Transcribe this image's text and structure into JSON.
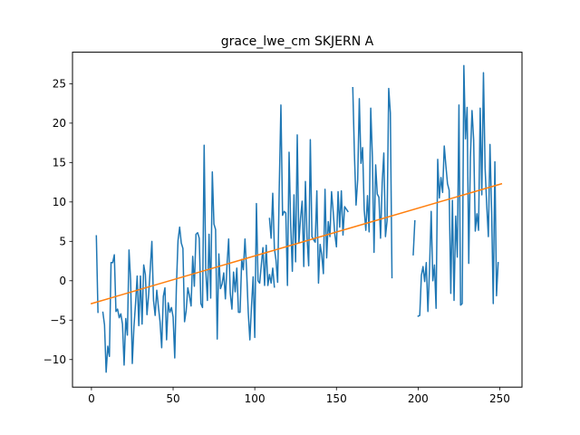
{
  "chart_data": {
    "type": "line",
    "title": "grace_lwe_cm SKJERN A",
    "xlabel": "",
    "ylabel": "",
    "xlim": [
      -11.6,
      263.6
    ],
    "ylim": [
      -13.5,
      29.0
    ],
    "grid": false,
    "x_ticks": [
      0,
      50,
      100,
      150,
      200,
      250
    ],
    "x_tick_labels": [
      "0",
      "50",
      "100",
      "150",
      "200",
      "250"
    ],
    "y_ticks": [
      -10,
      -5,
      0,
      5,
      10,
      15,
      20,
      25
    ],
    "y_tick_labels": [
      "−10",
      "−5",
      "0",
      "5",
      "10",
      "15",
      "20",
      "25"
    ],
    "colors": {
      "series": "#1f77b4",
      "trend": "#ff7f0e"
    },
    "series": [
      {
        "color": "#1f77b4",
        "segments": [
          [
            [
              3,
              5.7
            ],
            [
              4,
              -4.0
            ]
          ],
          [
            [
              7,
              -4.0
            ],
            [
              8,
              -5.6
            ],
            [
              9,
              -11.6
            ],
            [
              10,
              -8.3
            ],
            [
              11,
              -9.6
            ],
            [
              12,
              2.3
            ],
            [
              13,
              2.3
            ],
            [
              14,
              3.3
            ],
            [
              15,
              -3.9
            ],
            [
              16,
              -3.6
            ],
            [
              17,
              -4.7
            ],
            [
              18,
              -4.2
            ],
            [
              19,
              -5.5
            ],
            [
              20,
              -10.7
            ],
            [
              21,
              -4.8
            ],
            [
              22,
              -6.9
            ],
            [
              23,
              3.9
            ],
            [
              24,
              0.0
            ],
            [
              25,
              -10.5
            ],
            [
              26,
              -5.9
            ],
            [
              27,
              -2.9
            ],
            [
              28,
              0.6
            ],
            [
              29,
              -5.7
            ],
            [
              30,
              0.6
            ],
            [
              31,
              -5.5
            ],
            [
              32,
              2.0
            ],
            [
              33,
              0.8
            ],
            [
              34,
              -4.3
            ],
            [
              35,
              -1.8
            ],
            [
              36,
              1.5
            ],
            [
              37,
              5.0
            ],
            [
              38,
              -2.5
            ],
            [
              39,
              -4.4
            ],
            [
              40,
              -1.2
            ],
            [
              41,
              -3.3
            ],
            [
              42,
              -5.2
            ],
            [
              43,
              -8.5
            ],
            [
              44,
              -2.0
            ],
            [
              45,
              -0.9
            ],
            [
              46,
              -7.5
            ],
            [
              47,
              -2.8
            ],
            [
              48,
              -4.0
            ],
            [
              49,
              -3.4
            ],
            [
              50,
              -4.6
            ],
            [
              51,
              -9.8
            ],
            [
              52,
              -0.8
            ],
            [
              53,
              5.1
            ],
            [
              54,
              6.8
            ],
            [
              55,
              4.8
            ],
            [
              56,
              4.1
            ],
            [
              57,
              -5.2
            ],
            [
              58,
              -3.8
            ],
            [
              59,
              -0.9
            ],
            [
              60,
              -1.9
            ],
            [
              61,
              -3.2
            ],
            [
              62,
              3.1
            ],
            [
              63,
              -0.7
            ],
            [
              64,
              5.9
            ],
            [
              65,
              6.1
            ],
            [
              66,
              5.4
            ],
            [
              67,
              -2.9
            ],
            [
              68,
              -3.4
            ],
            [
              69,
              17.2
            ],
            [
              70,
              1.2
            ],
            [
              71,
              -2.5
            ],
            [
              72,
              5.9
            ],
            [
              73,
              -2.2
            ],
            [
              74,
              13.8
            ],
            [
              75,
              7.2
            ],
            [
              76,
              6.5
            ],
            [
              77,
              -7.4
            ],
            [
              78,
              3.4
            ],
            [
              79,
              -1.0
            ],
            [
              80,
              -0.4
            ],
            [
              81,
              1.0
            ],
            [
              82,
              -2.3
            ],
            [
              83,
              2.0
            ],
            [
              84,
              5.3
            ],
            [
              85,
              -1.6
            ],
            [
              86,
              -3.6
            ],
            [
              87,
              1.1
            ],
            [
              88,
              -1.4
            ],
            [
              89,
              1.6
            ],
            [
              90,
              -4.0
            ],
            [
              91,
              -4.0
            ],
            [
              92,
              2.7
            ],
            [
              93,
              1.4
            ],
            [
              94,
              5.3
            ],
            [
              95,
              1.3
            ],
            [
              96,
              -4.0
            ],
            [
              97,
              -7.5
            ],
            [
              98,
              -3.2
            ],
            [
              99,
              0.5
            ],
            [
              100,
              -7.2
            ],
            [
              101,
              9.8
            ],
            [
              102,
              0.0
            ],
            [
              103,
              -0.3
            ],
            [
              104,
              2.0
            ],
            [
              105,
              4.2
            ],
            [
              106,
              -0.6
            ],
            [
              107,
              4.5
            ],
            [
              108,
              -0.6
            ],
            [
              109,
              0.8
            ],
            [
              110,
              -0.3
            ],
            [
              111,
              1.6
            ],
            [
              112,
              -0.8
            ]
          ],
          [
            [
              109,
              7.9
            ],
            [
              110,
              5.4
            ],
            [
              111,
              11.1
            ],
            [
              112,
              4.1
            ],
            [
              113,
              2.6
            ],
            [
              114,
              -0.2
            ],
            [
              115,
              12.0
            ],
            [
              116,
              22.3
            ],
            [
              117,
              8.3
            ],
            [
              118,
              8.8
            ],
            [
              119,
              8.6
            ],
            [
              120,
              -0.6
            ],
            [
              121,
              16.3
            ],
            [
              122,
              7.0
            ],
            [
              123,
              1.2
            ],
            [
              124,
              10.9
            ],
            [
              125,
              2.4
            ],
            [
              126,
              18.5
            ],
            [
              127,
              4.8
            ],
            [
              128,
              7.9
            ],
            [
              129,
              10.1
            ],
            [
              130,
              1.8
            ],
            [
              131,
              12.6
            ],
            [
              132,
              5.5
            ],
            [
              133,
              1.9
            ],
            [
              134,
              17.9
            ],
            [
              135,
              5.6
            ],
            [
              136,
              5.2
            ],
            [
              137,
              4.9
            ],
            [
              138,
              11.4
            ],
            [
              139,
              -0.3
            ],
            [
              140,
              4.6
            ],
            [
              141,
              3.3
            ],
            [
              142,
              0.9
            ],
            [
              143,
              11.6
            ],
            [
              144,
              2.9
            ],
            [
              145,
              7.5
            ],
            [
              146,
              5.6
            ],
            [
              147,
              11.3
            ],
            [
              148,
              8.8
            ],
            [
              149,
              5.9
            ],
            [
              150,
              4.3
            ],
            [
              151,
              11.3
            ],
            [
              152,
              6.8
            ],
            [
              153,
              11.4
            ],
            [
              154,
              5.8
            ],
            [
              155,
              9.4
            ],
            [
              156,
              9.1
            ],
            [
              157,
              8.8
            ]
          ],
          [
            [
              160,
              24.5
            ],
            [
              161,
              16.1
            ],
            [
              162,
              9.6
            ],
            [
              163,
              12.8
            ],
            [
              164,
              23.1
            ],
            [
              165,
              14.9
            ],
            [
              166,
              16.9
            ],
            [
              167,
              9.0
            ],
            [
              168,
              6.4
            ],
            [
              169,
              10.8
            ],
            [
              170,
              6.2
            ],
            [
              171,
              21.9
            ],
            [
              172,
              15.7
            ],
            [
              173,
              3.6
            ],
            [
              174,
              14.7
            ],
            [
              175,
              11.0
            ],
            [
              176,
              10.6
            ],
            [
              177,
              5.4
            ],
            [
              178,
              12.4
            ],
            [
              179,
              16.2
            ],
            [
              180,
              5.6
            ],
            [
              181,
              7.6
            ],
            [
              182,
              24.4
            ],
            [
              183,
              21.3
            ],
            [
              184,
              0.4
            ]
          ],
          [
            [
              197,
              3.3
            ],
            [
              198,
              7.6
            ]
          ],
          [
            [
              200,
              -4.5
            ],
            [
              201,
              -4.4
            ],
            [
              202,
              0.7
            ],
            [
              203,
              1.8
            ],
            [
              204,
              -0.1
            ],
            [
              205,
              2.3
            ],
            [
              206,
              -3.9
            ],
            [
              207,
              1.6
            ],
            [
              208,
              8.8
            ],
            [
              209,
              0.0
            ],
            [
              210,
              2.0
            ],
            [
              211,
              -3.5
            ],
            [
              212,
              15.4
            ],
            [
              213,
              10.5
            ],
            [
              214,
              13.1
            ],
            [
              215,
              11.2
            ],
            [
              216,
              17.1
            ],
            [
              217,
              14.6
            ],
            [
              218,
              12.3
            ],
            [
              219,
              11.5
            ],
            [
              220,
              -1.6
            ],
            [
              221,
              10.2
            ],
            [
              222,
              -2.5
            ],
            [
              223,
              8.2
            ],
            [
              224,
              3.0
            ],
            [
              225,
              22.3
            ],
            [
              226,
              -3.1
            ],
            [
              227,
              -2.9
            ],
            [
              228,
              27.3
            ],
            [
              229,
              18.0
            ],
            [
              230,
              22.0
            ],
            [
              231,
              2.2
            ],
            [
              232,
              15.6
            ],
            [
              233,
              21.6
            ],
            [
              234,
              17.9
            ],
            [
              235,
              6.3
            ],
            [
              236,
              8.5
            ],
            [
              237,
              6.4
            ],
            [
              238,
              21.9
            ],
            [
              239,
              10.9
            ],
            [
              240,
              26.4
            ],
            [
              241,
              14.3
            ],
            [
              242,
              9.6
            ],
            [
              243,
              5.6
            ],
            [
              244,
              17.3
            ],
            [
              245,
              8.8
            ],
            [
              246,
              -2.9
            ],
            [
              247,
              15.1
            ],
            [
              248,
              -1.9
            ],
            [
              249,
              2.3
            ]
          ]
        ]
      },
      {
        "color": "#ff7f0e",
        "points": [
          [
            0,
            -2.9
          ],
          [
            251,
            12.3
          ]
        ]
      }
    ]
  }
}
